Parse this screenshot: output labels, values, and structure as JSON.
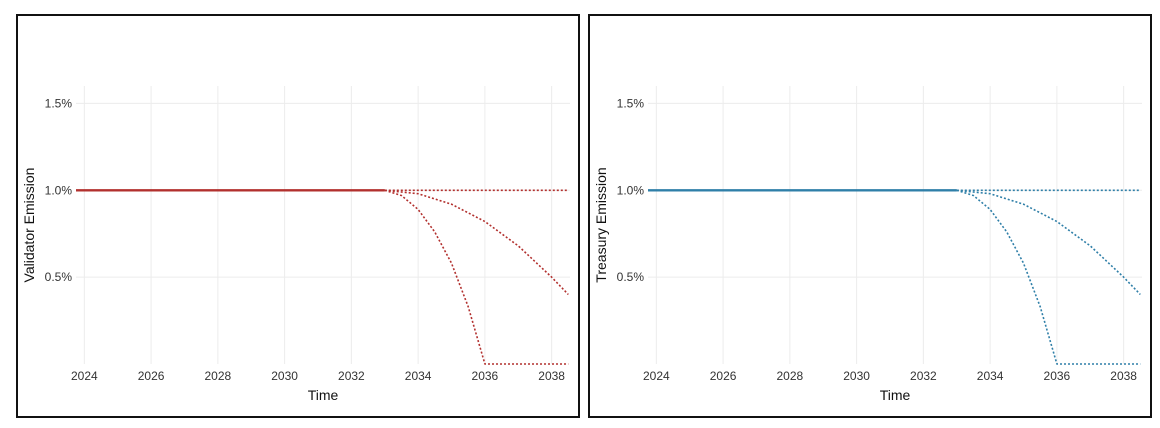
{
  "chart_data": [
    {
      "type": "line",
      "title": "",
      "xlabel": "Time",
      "ylabel": "Validator Emission",
      "xlim": [
        2023.75,
        2038.55
      ],
      "ylim": [
        0.0,
        1.6
      ],
      "x_ticks": [
        2024,
        2026,
        2028,
        2030,
        2032,
        2034,
        2036,
        2038
      ],
      "x_tick_labels": [
        "2024",
        "2026",
        "2028",
        "2030",
        "2032",
        "2034",
        "2036",
        "2038"
      ],
      "y_ticks": [
        0.5,
        1.0,
        1.5
      ],
      "y_tick_labels": [
        "0.5%",
        "1.0%",
        "1.5%"
      ],
      "grid": true,
      "legend": "none",
      "color": "#b2302e",
      "series": [
        {
          "style": "solid",
          "x": [
            2023.75,
            2033.0
          ],
          "y": [
            1.0,
            1.0
          ]
        },
        {
          "style": "dotted",
          "x": [
            2033.0,
            2038.5
          ],
          "y": [
            1.0,
            1.0
          ]
        },
        {
          "style": "dotted",
          "x": [
            2033.0,
            2034.0,
            2035.0,
            2036.0,
            2037.0,
            2038.0,
            2038.5
          ],
          "y": [
            1.0,
            0.98,
            0.92,
            0.82,
            0.68,
            0.5,
            0.4
          ]
        },
        {
          "style": "dotted",
          "x": [
            2033.0,
            2033.5,
            2034.0,
            2034.5,
            2035.0,
            2035.5,
            2036.0,
            2038.5
          ],
          "y": [
            1.0,
            0.97,
            0.89,
            0.76,
            0.58,
            0.33,
            0.0,
            0.0
          ]
        }
      ]
    },
    {
      "type": "line",
      "title": "",
      "xlabel": "Time",
      "ylabel": "Treasury Emission",
      "xlim": [
        2023.75,
        2038.55
      ],
      "ylim": [
        0.0,
        1.6
      ],
      "x_ticks": [
        2024,
        2026,
        2028,
        2030,
        2032,
        2034,
        2036,
        2038
      ],
      "x_tick_labels": [
        "2024",
        "2026",
        "2028",
        "2030",
        "2032",
        "2034",
        "2036",
        "2038"
      ],
      "y_ticks": [
        0.5,
        1.0,
        1.5
      ],
      "y_tick_labels": [
        "0.5%",
        "1.0%",
        "1.5%"
      ],
      "grid": true,
      "legend": "none",
      "color": "#2f7fa8",
      "series": [
        {
          "style": "solid",
          "x": [
            2023.75,
            2033.0
          ],
          "y": [
            1.0,
            1.0
          ]
        },
        {
          "style": "dotted",
          "x": [
            2033.0,
            2038.5
          ],
          "y": [
            1.0,
            1.0
          ]
        },
        {
          "style": "dotted",
          "x": [
            2033.0,
            2034.0,
            2035.0,
            2036.0,
            2037.0,
            2038.0,
            2038.5
          ],
          "y": [
            1.0,
            0.98,
            0.92,
            0.82,
            0.68,
            0.5,
            0.4
          ]
        },
        {
          "style": "dotted",
          "x": [
            2033.0,
            2033.5,
            2034.0,
            2034.5,
            2035.0,
            2035.5,
            2036.0,
            2038.5
          ],
          "y": [
            1.0,
            0.97,
            0.89,
            0.76,
            0.58,
            0.33,
            0.0,
            0.0
          ]
        }
      ]
    }
  ]
}
